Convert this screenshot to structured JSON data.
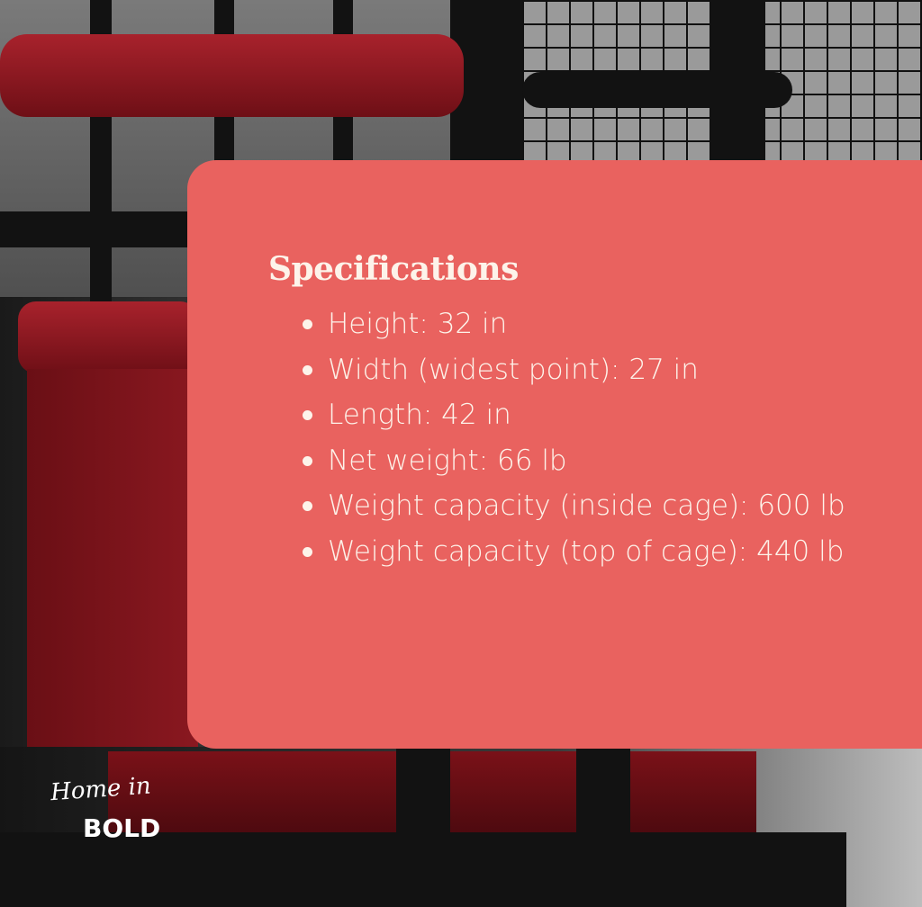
{
  "card": {
    "title": "Specifications",
    "items": [
      "Height: 32 in",
      "Width (widest point): 27 in",
      "Length: 42 in",
      "Net weight: 66 lb",
      "Weight capacity (inside cage): 600 lb",
      "Weight capacity (top of cage): 440 lb"
    ],
    "background_color": "#E9625F",
    "text_color": "#FDF3EA"
  },
  "logo": {
    "script": "Home in",
    "bold": "BOLD"
  }
}
